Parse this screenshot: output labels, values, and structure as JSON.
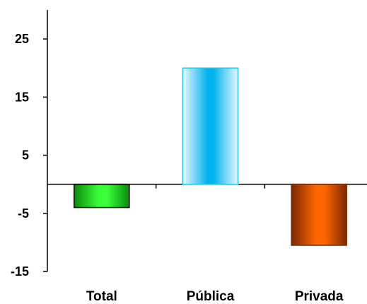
{
  "chart_data": {
    "type": "bar",
    "categories": [
      "Total",
      "Pública",
      "Privada"
    ],
    "values": [
      -4,
      20,
      -10.5
    ],
    "ylim": [
      -15,
      30
    ],
    "yticks": [
      25,
      15,
      5,
      -5,
      -15
    ],
    "ytick_labels": [
      "25",
      "15",
      "5",
      "-5",
      "-15"
    ],
    "grid": false,
    "legend": "none",
    "colors": {
      "Total": {
        "dark": "#0a8a0a",
        "light": "#39ff39",
        "border": "#000000"
      },
      "Pública": {
        "dark": "#00b2ee",
        "light": "#e6f8ff",
        "border": "#27c6e8"
      },
      "Privada": {
        "dark": "#7a2800",
        "light": "#ff6600",
        "border": "#7a2e00"
      }
    }
  }
}
